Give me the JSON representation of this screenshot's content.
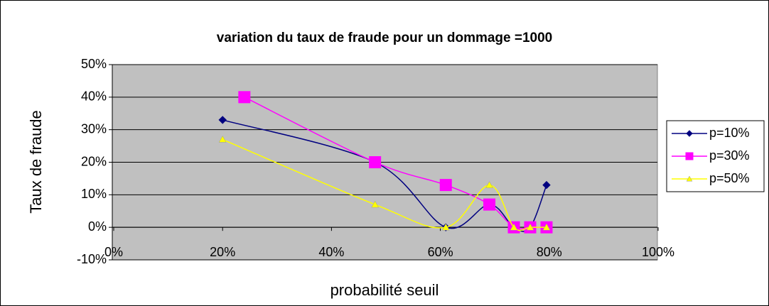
{
  "chart_data": {
    "type": "line",
    "smooth": true,
    "title": "variation du taux de fraude pour un dommage =1000",
    "xlabel": "probabilité seuil",
    "ylabel": "Taux de fraude",
    "xlim": [
      0,
      100
    ],
    "xticks": [
      {
        "value": 0,
        "label": "0%"
      },
      {
        "value": 20,
        "label": "20%"
      },
      {
        "value": 40,
        "label": "40%"
      },
      {
        "value": 60,
        "label": "60%"
      },
      {
        "value": 80,
        "label": "80%"
      },
      {
        "value": 100,
        "label": "100%"
      }
    ],
    "ylim": [
      -10,
      50
    ],
    "yticks": [
      {
        "value": -10,
        "label": "-10%"
      },
      {
        "value": 0,
        "label": "0%"
      },
      {
        "value": 10,
        "label": "10%"
      },
      {
        "value": 20,
        "label": "20%"
      },
      {
        "value": 30,
        "label": "30%"
      },
      {
        "value": 40,
        "label": "40%"
      },
      {
        "value": 50,
        "label": "50%"
      }
    ],
    "grid": true,
    "legend": "right",
    "series": [
      {
        "name": "p=10%",
        "color": "#000080",
        "marker": "diamond",
        "x": [
          20,
          48,
          61,
          69,
          73.5,
          76.5,
          79.5
        ],
        "values": [
          33,
          20,
          0,
          7,
          0,
          0,
          13
        ]
      },
      {
        "name": "p=30%",
        "color": "#FF00FF",
        "marker": "square",
        "x": [
          24,
          48,
          61,
          69,
          73.5,
          76.5,
          79.5
        ],
        "values": [
          40,
          20,
          13,
          7,
          0,
          0,
          0
        ]
      },
      {
        "name": "p=50%",
        "color": "#FFFF00",
        "marker": "triangle",
        "x": [
          20,
          48,
          61,
          69,
          73.5,
          76.5,
          79.5
        ],
        "values": [
          27,
          7,
          0,
          13,
          0,
          0,
          0
        ]
      }
    ]
  }
}
